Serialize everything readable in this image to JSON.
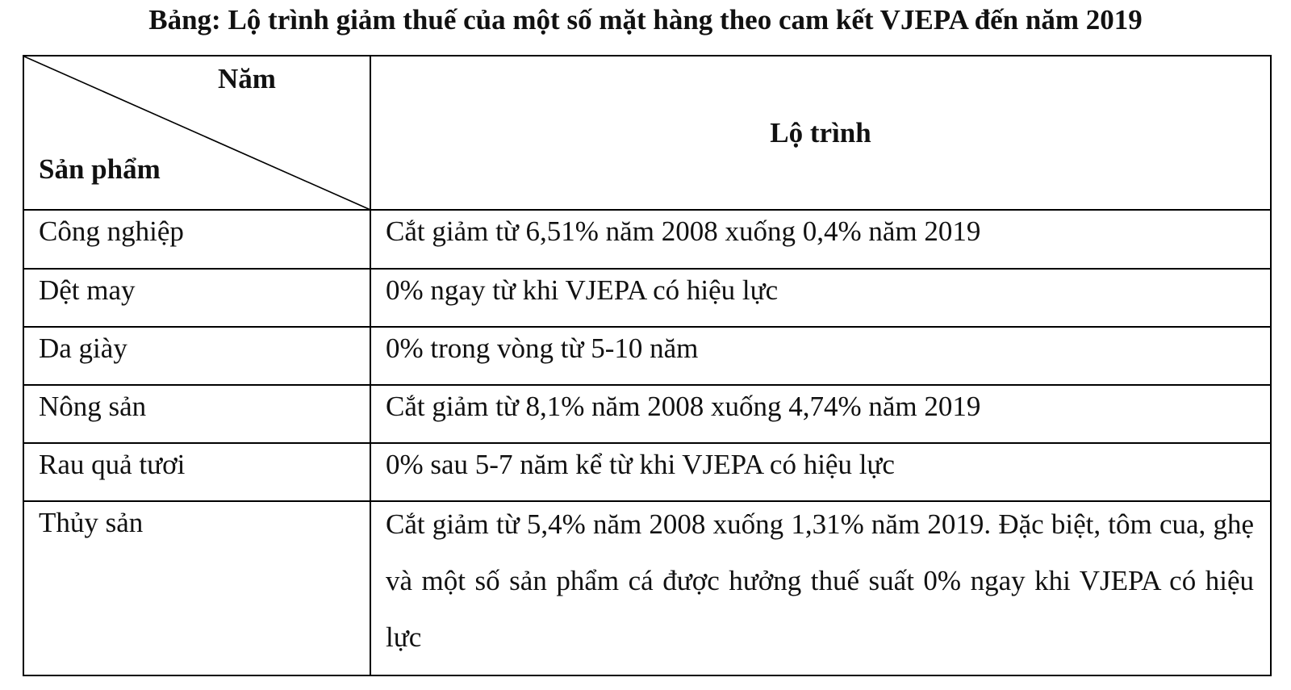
{
  "title": "Bảng: Lộ trình giảm thuế của một số mặt hàng theo cam kết VJEPA đến năm 2019",
  "table": {
    "header": {
      "year_label": "Năm",
      "product_label": "Sản phẩm",
      "route_label": "Lộ trình"
    },
    "rows": [
      {
        "product": "Công nghiệp",
        "route": "Cắt giảm từ 6,51% năm 2008 xuống 0,4% năm 2019"
      },
      {
        "product": "Dệt may",
        "route": "0% ngay từ khi VJEPA có hiệu lực"
      },
      {
        "product": "Da giày",
        "route": "0% trong vòng từ 5-10 năm"
      },
      {
        "product": "Nông sản",
        "route": "Cắt giảm từ 8,1% năm 2008 xuống 4,74% năm 2019"
      },
      {
        "product": "Rau quả tươi",
        "route": "0% sau 5-7 năm kể từ khi VJEPA có hiệu lực"
      },
      {
        "product": "Thủy sản",
        "route": "Cắt giảm từ 5,4% năm 2008 xuống 1,31% năm 2019. Đặc biệt, tôm cua, ghẹ và một số sản phẩm cá được hưởng thuế suất 0% ngay khi VJEPA có hiệu lực"
      }
    ]
  }
}
